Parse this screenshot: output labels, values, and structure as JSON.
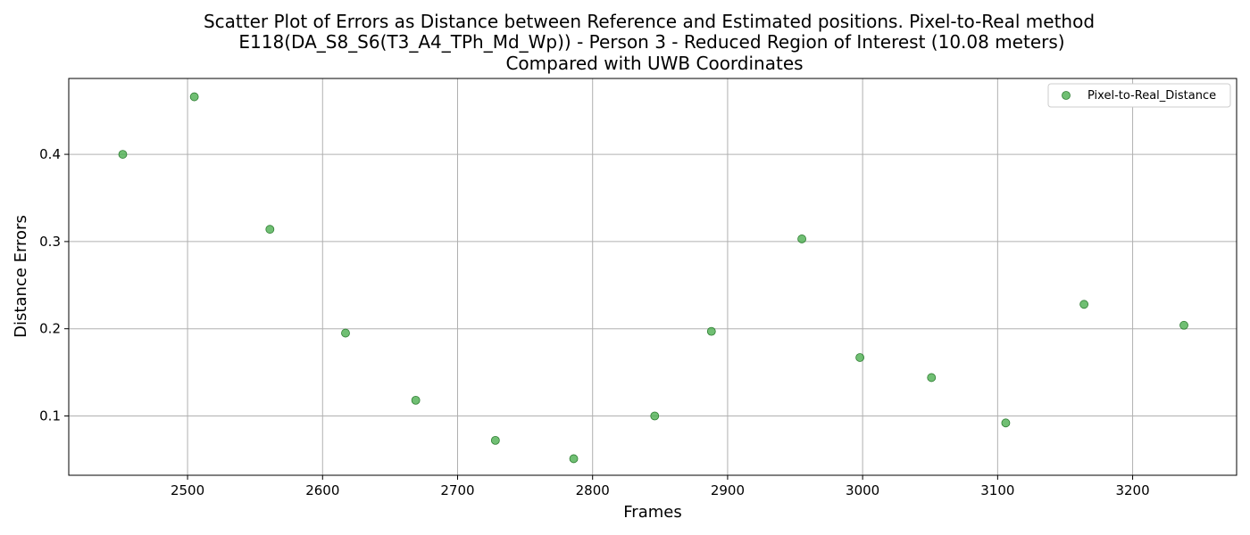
{
  "chart_data": {
    "type": "scatter",
    "title": [
      "Scatter Plot of Errors as Distance between Reference and Estimated positions. Pixel-to-Real method",
      "E118(DA_S8_S6(T3_A4_TPh_Md_Wp)) - Person 3 - Reduced Region of Interest (10.08 meters)",
      "Compared with UWB Coordinates"
    ],
    "xlabel": "Frames",
    "ylabel": "Distance Errors",
    "xlim": [
      2412,
      3277
    ],
    "ylim": [
      0.032,
      0.487
    ],
    "xticks": [
      2500,
      2600,
      2700,
      2800,
      2900,
      3000,
      3100,
      3200
    ],
    "yticks": [
      0.1,
      0.2,
      0.3,
      0.4
    ],
    "ytick_labels": [
      "0.1",
      "0.2",
      "0.3",
      "0.4"
    ],
    "grid": true,
    "legend_position": "top-right",
    "series": [
      {
        "name": "Pixel-to-Real_Distance",
        "color": "#4caf50",
        "x": [
          2452,
          2505,
          2561,
          2617,
          2669,
          2728,
          2786,
          2846,
          2888,
          2955,
          2998,
          3051,
          3106,
          3164,
          3238
        ],
        "y": [
          0.4,
          0.466,
          0.314,
          0.195,
          0.118,
          0.072,
          0.051,
          0.1,
          0.197,
          0.303,
          0.167,
          0.144,
          0.092,
          0.228,
          0.204
        ]
      }
    ]
  }
}
